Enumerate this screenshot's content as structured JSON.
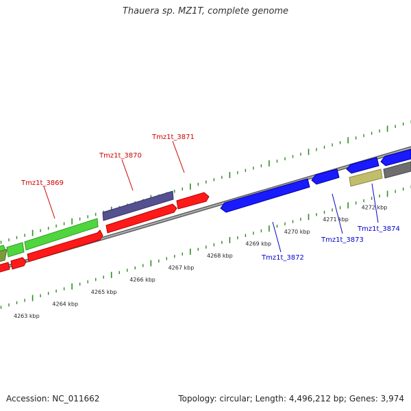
{
  "title": "Thauera sp. MZ1T, complete genome",
  "footer": {
    "accession": "Accession: NC_011662",
    "summary": "Topology: circular; Length: 4,496,212 bp; Genes: 3,974"
  },
  "colors": {
    "backbone": "#8c8c8c",
    "ticks": "#2e8b22",
    "label_forward": "#cc0000",
    "label_reverse": "#0000cc",
    "gene_red": "#ff1a1a",
    "gene_green": "#4fd63f",
    "gene_purple": "#55508f",
    "gene_blue": "#1a1aff",
    "gene_olive": "#c2bd6b",
    "gene_gray": "#6e6e6e"
  },
  "scale_labels": [
    "4263 kbp",
    "4264 kbp",
    "4265 kbp",
    "4266 kbp",
    "4267 kbp",
    "4268 kbp",
    "4269 kbp",
    "4270 kbp",
    "4271 kbp",
    "4272 kbp"
  ],
  "gene_labels": [
    {
      "id": "Tmz1t_3869",
      "strand": "forward"
    },
    {
      "id": "Tmz1t_3870",
      "strand": "forward"
    },
    {
      "id": "Tmz1t_3871",
      "strand": "forward"
    },
    {
      "id": "Tmz1t_3872",
      "strand": "reverse"
    },
    {
      "id": "Tmz1t_3873",
      "strand": "reverse"
    },
    {
      "id": "Tmz1t_3874",
      "strand": "reverse"
    }
  ]
}
